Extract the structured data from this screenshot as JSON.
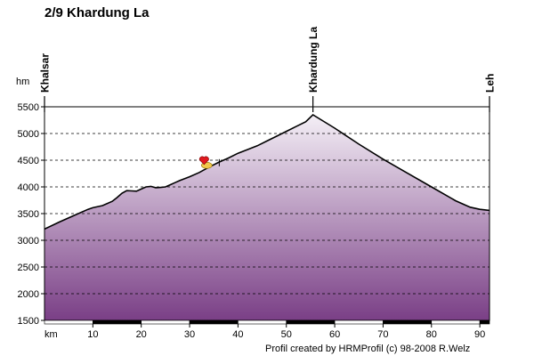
{
  "title": "2/9 Khardung La",
  "credit": "Profil created by HRMProfil (c) 98-2008 R.Welz",
  "chart_data": {
    "type": "area",
    "xlabel": "km",
    "ylabel": "hm",
    "xlim": [
      0,
      92
    ],
    "ylim": [
      1500,
      5500
    ],
    "x_ticks": [
      10,
      20,
      30,
      40,
      50,
      60,
      70,
      80,
      90
    ],
    "y_ticks": [
      1500,
      2000,
      2500,
      3000,
      3500,
      4000,
      4500,
      5000,
      5500
    ],
    "grid": "horizontal-dashed",
    "fill_colors": {
      "top": "#f4eff6",
      "bottom": "#7a3f86"
    },
    "series": [
      {
        "x": [
          0,
          3,
          6,
          9,
          10,
          12,
          14,
          15,
          16,
          17,
          18,
          19,
          20,
          21,
          22,
          23,
          24,
          25,
          26,
          27,
          28,
          30,
          32,
          34,
          36,
          38,
          40,
          42,
          44,
          46,
          48,
          50,
          52,
          54,
          55.5,
          60,
          65,
          70,
          75,
          80,
          85,
          88,
          90,
          91,
          92
        ],
        "y": [
          3210,
          3340,
          3460,
          3580,
          3610,
          3650,
          3730,
          3800,
          3880,
          3930,
          3925,
          3920,
          3960,
          4000,
          4010,
          3985,
          3990,
          4000,
          4040,
          4080,
          4120,
          4190,
          4270,
          4370,
          4460,
          4540,
          4630,
          4700,
          4770,
          4860,
          4950,
          5040,
          5130,
          5220,
          5350,
          5100,
          4800,
          4520,
          4260,
          4000,
          3740,
          3620,
          3580,
          3570,
          3560
        ]
      }
    ],
    "places": [
      {
        "name": "Khalsar",
        "km": 0
      },
      {
        "name": "Khardung La",
        "km": 55.5
      },
      {
        "name": "Leh",
        "km": 92
      }
    ],
    "marker": {
      "km": 33,
      "ele": 4470,
      "color": "#e0191f",
      "icon": "heart-marker-icon"
    }
  }
}
